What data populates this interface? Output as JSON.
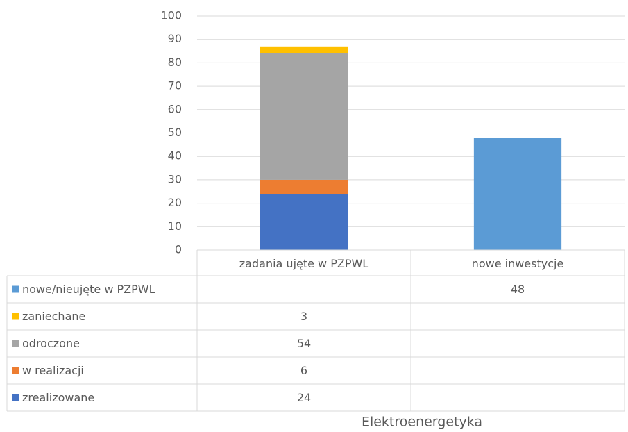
{
  "chart_data": {
    "type": "bar",
    "stacked": true,
    "data_table": true,
    "x_label": "Elektroenergetyka",
    "categories": [
      "zadania ujęte w PZPWL",
      "nowe inwestycje"
    ],
    "series": [
      {
        "name": "zrealizowane",
        "color": "#4472c4",
        "values": [
          24,
          null
        ]
      },
      {
        "name": "w realizacji",
        "color": "#ed7d31",
        "values": [
          6,
          null
        ]
      },
      {
        "name": "odroczone",
        "color": "#a5a5a5",
        "values": [
          54,
          null
        ]
      },
      {
        "name": "zaniechane",
        "color": "#ffc000",
        "values": [
          3,
          null
        ]
      },
      {
        "name": "nowe/nieujęte w PZPWL",
        "color": "#5b9bd5",
        "values": [
          null,
          48
        ]
      }
    ],
    "ylim": [
      0,
      100
    ],
    "yticks": [
      0,
      10,
      20,
      30,
      40,
      50,
      60,
      70,
      80,
      90,
      100
    ],
    "grid": true
  }
}
